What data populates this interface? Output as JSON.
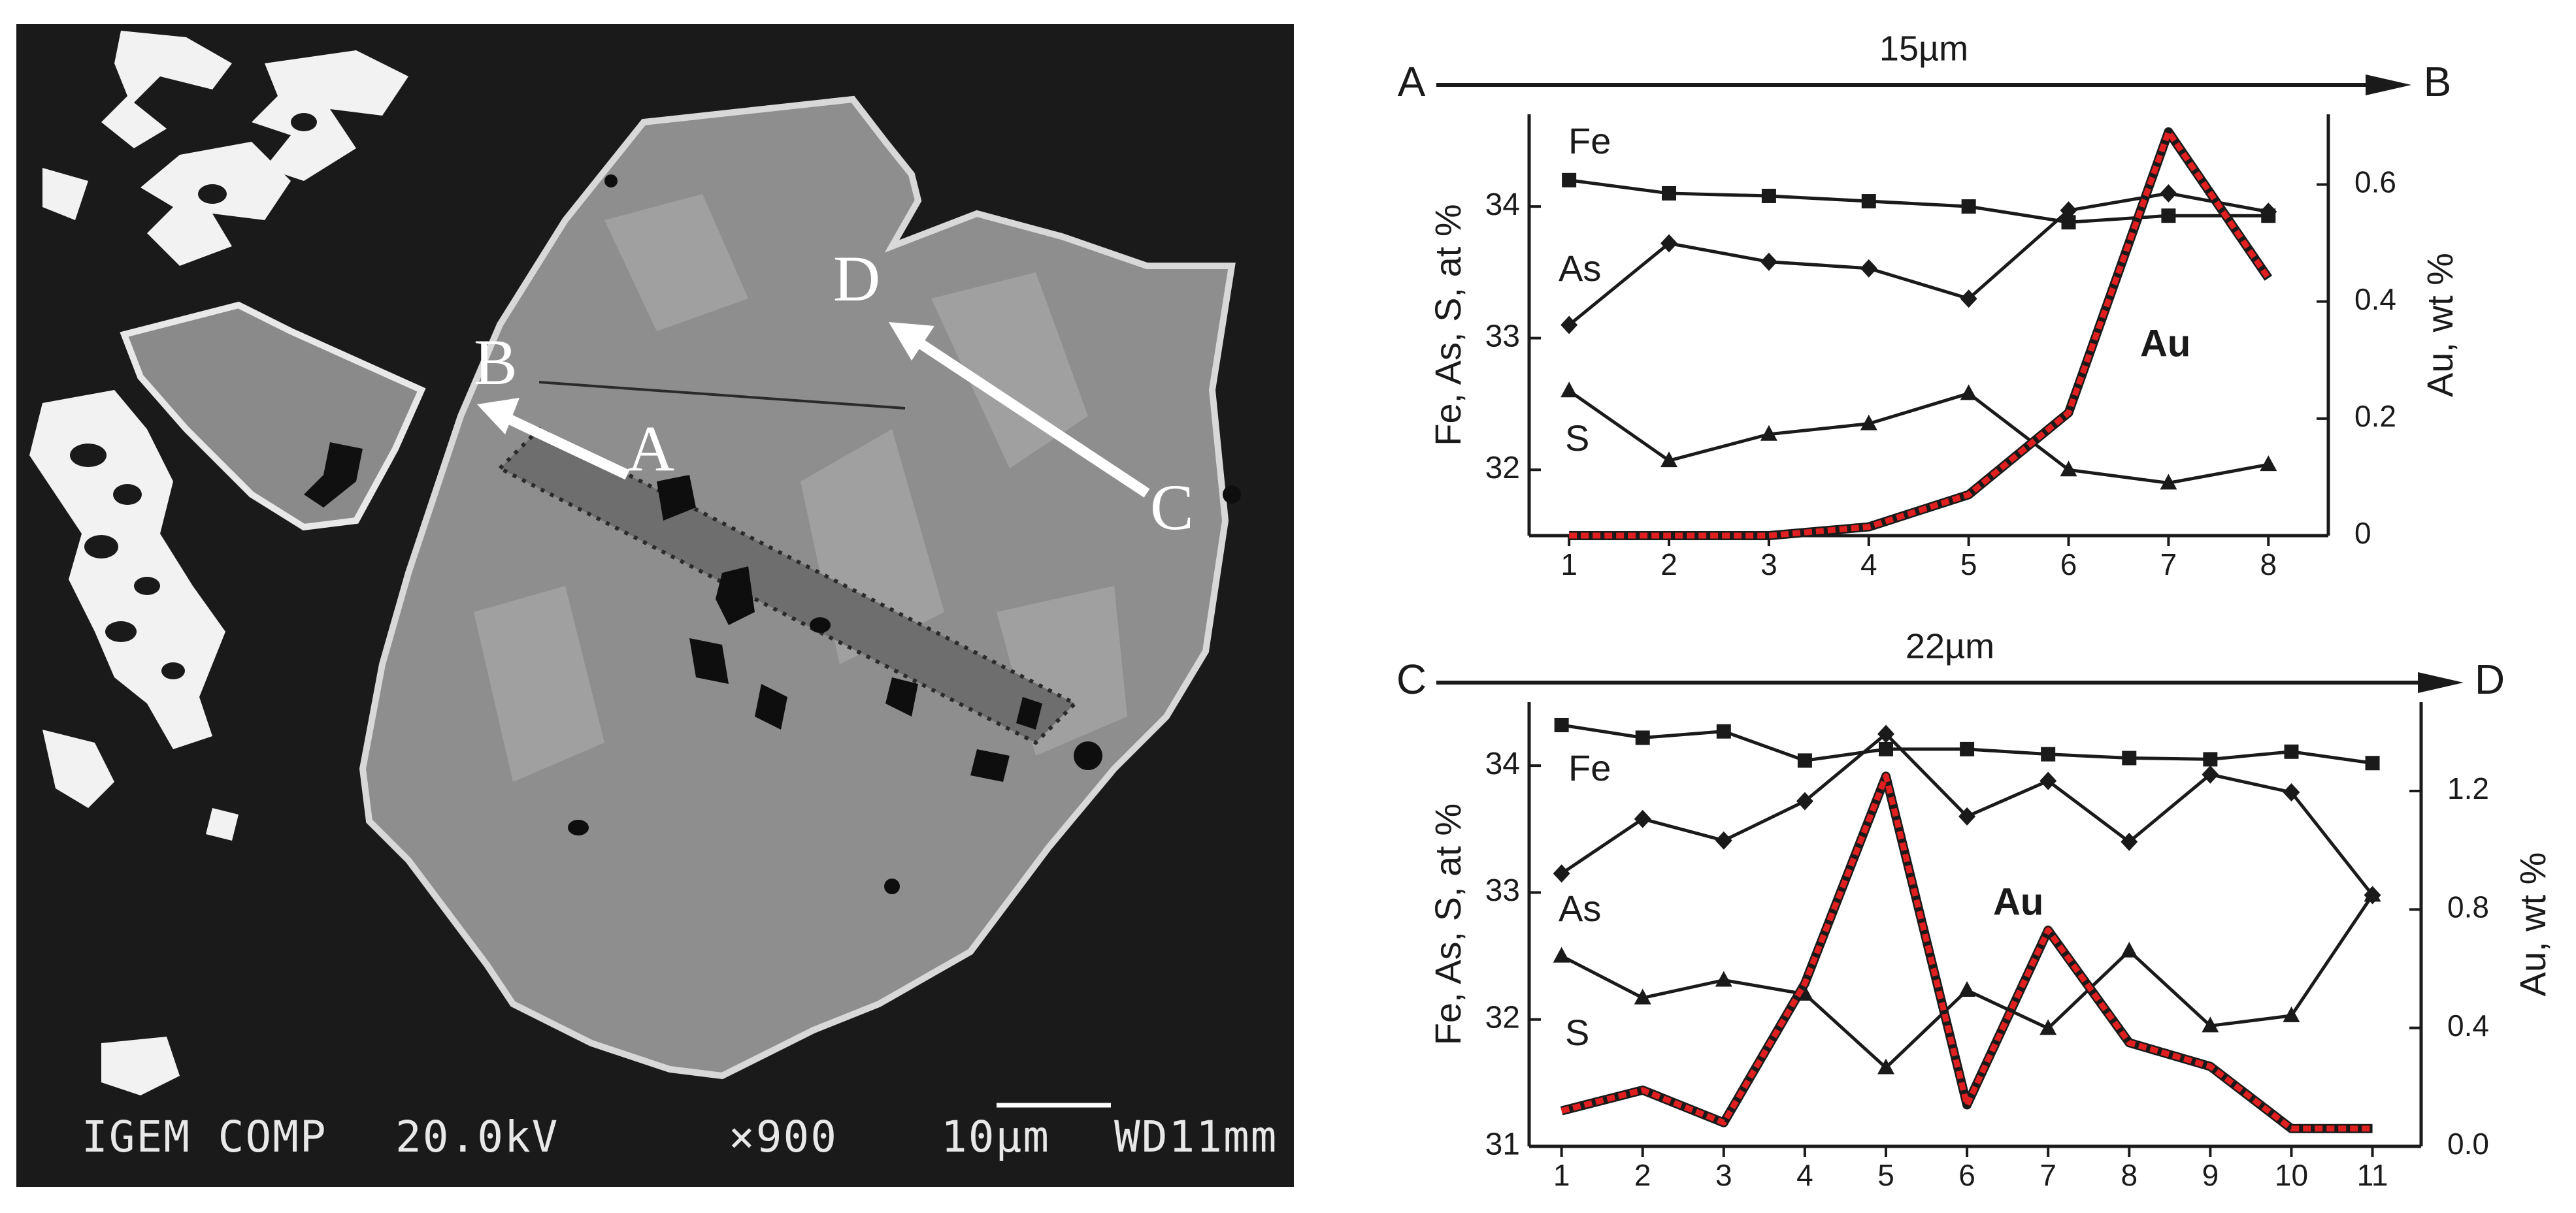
{
  "sem": {
    "labels": {
      "A": "A",
      "B": "B",
      "C": "C",
      "D": "D"
    },
    "footer": {
      "detector": "IGEM COMP",
      "voltage": "20.0kV",
      "magnification": "×900",
      "scale": "10µm",
      "wd": "WD11mm"
    }
  },
  "chart_data": [
    {
      "type": "line",
      "title": "15µm",
      "start_label": "A",
      "end_label": "B",
      "xlabel": "",
      "ylabel": "Fe, As, S, at %",
      "y2label": "Au, wt %",
      "x": [
        1,
        2,
        3,
        4,
        5,
        6,
        7,
        8
      ],
      "xlim": [
        0.6,
        8.6
      ],
      "ylim": [
        31.5,
        34.7
      ],
      "yticks": [
        32,
        33,
        34
      ],
      "y2lim": [
        0,
        0.72
      ],
      "y2ticks": [
        0,
        0.2,
        0.4,
        0.6
      ],
      "y2ticklabels": [
        "0",
        "0.2",
        "0.4",
        "0.6"
      ],
      "series": [
        {
          "name": "Fe",
          "marker": "square",
          "values": [
            34.2,
            34.1,
            34.08,
            34.04,
            34.0,
            33.88,
            33.93,
            33.93
          ]
        },
        {
          "name": "As",
          "marker": "diamond",
          "values": [
            33.1,
            33.72,
            33.58,
            33.53,
            33.3,
            33.97,
            34.1,
            33.96
          ]
        },
        {
          "name": "S",
          "marker": "triangle",
          "values": [
            32.6,
            32.07,
            32.27,
            32.35,
            32.58,
            32.0,
            31.9,
            32.04
          ]
        },
        {
          "name": "Au",
          "axis": "right",
          "color": "#e02020",
          "values": [
            0.0,
            0.0,
            0.0,
            0.015,
            0.07,
            0.21,
            0.69,
            0.44
          ]
        }
      ],
      "annotations": {
        "fe": "Fe",
        "as": "As",
        "s": "S",
        "au": "Au"
      }
    },
    {
      "type": "line",
      "title": "22µm",
      "start_label": "C",
      "end_label": "D",
      "xlabel": "",
      "ylabel": "Fe, As, S, at %",
      "y2label": "Au, wt %",
      "x": [
        1,
        2,
        3,
        4,
        5,
        6,
        7,
        8,
        9,
        10,
        11
      ],
      "xlim": [
        0.6,
        11.6
      ],
      "ylim": [
        31.0,
        34.5
      ],
      "yticks": [
        31,
        32,
        33,
        34
      ],
      "y2lim": [
        0,
        1.5
      ],
      "y2ticks": [
        0,
        0.4,
        0.8,
        1.2
      ],
      "y2ticklabels": [
        "0.0",
        "0.4",
        "0.8",
        "1.2"
      ],
      "series": [
        {
          "name": "Fe",
          "marker": "square",
          "values": [
            34.32,
            34.22,
            34.27,
            34.04,
            34.13,
            34.13,
            34.09,
            34.06,
            34.05,
            34.11,
            34.02
          ]
        },
        {
          "name": "As",
          "marker": "diamond",
          "values": [
            33.15,
            33.58,
            33.41,
            33.72,
            34.25,
            33.6,
            33.88,
            33.4,
            33.93,
            33.79,
            32.98
          ]
        },
        {
          "name": "S",
          "marker": "triangle",
          "values": [
            32.5,
            32.17,
            32.31,
            32.2,
            31.62,
            32.23,
            31.93,
            32.54,
            31.95,
            32.03,
            32.98
          ]
        },
        {
          "name": "Au",
          "axis": "right",
          "color": "#e02020",
          "values": [
            0.12,
            0.19,
            0.08,
            0.55,
            1.25,
            0.14,
            0.73,
            0.35,
            0.27,
            0.06,
            0.06
          ]
        }
      ],
      "annotations": {
        "fe": "Fe",
        "as": "As",
        "s": "S",
        "au": "Au"
      }
    }
  ]
}
